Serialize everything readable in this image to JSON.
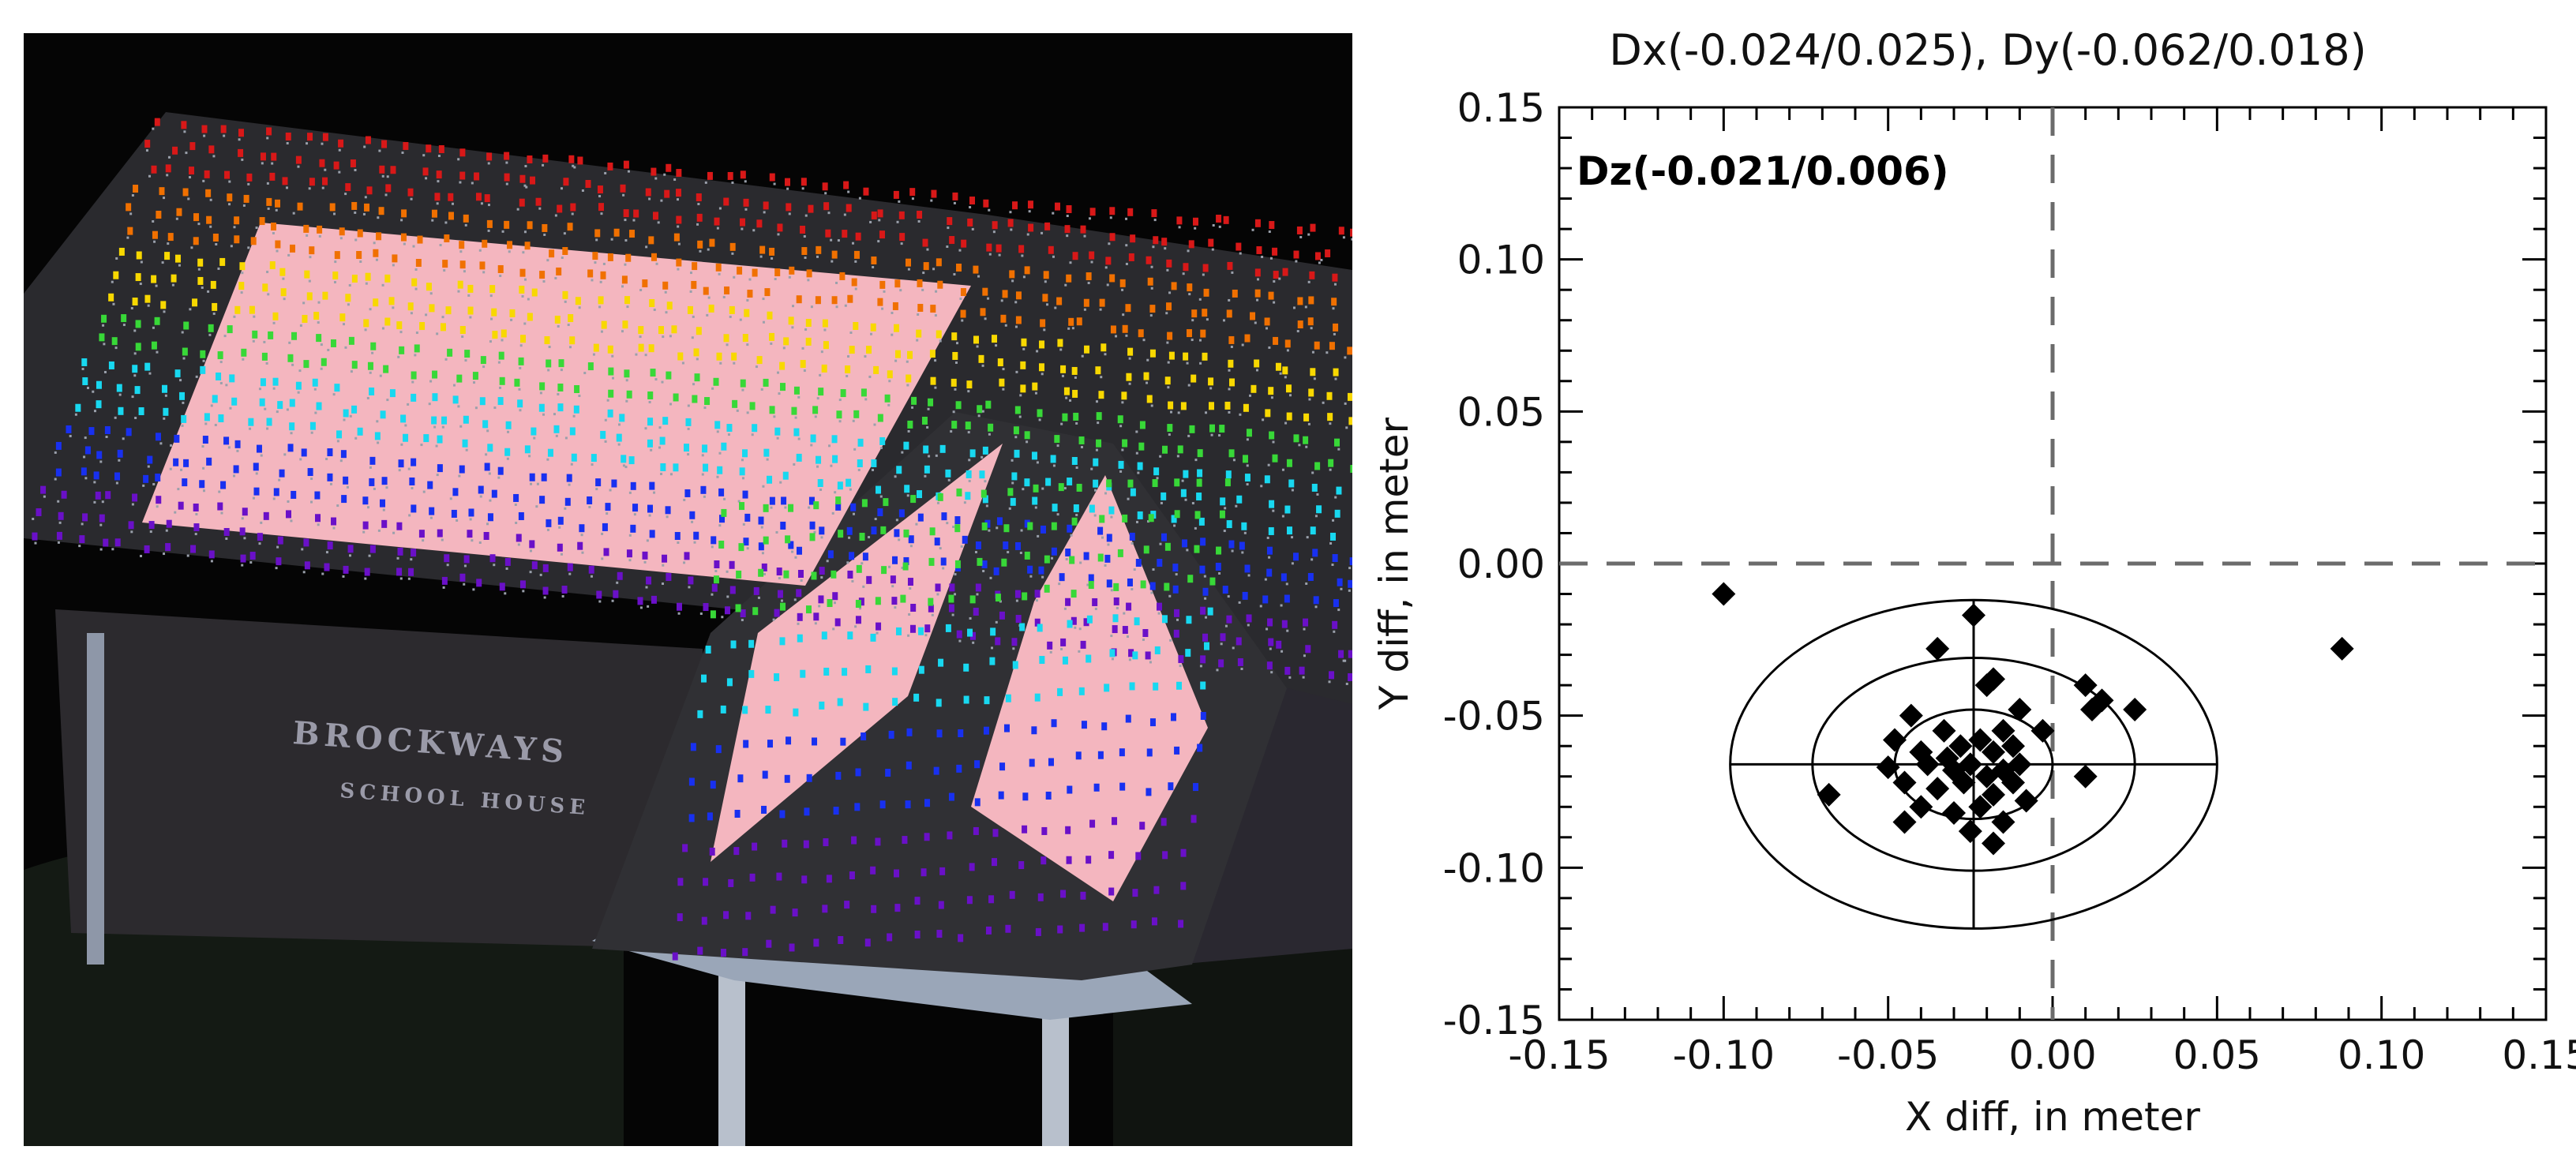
{
  "colors": {
    "background": "#ffffff",
    "scene_background": "#050505",
    "roof_plane": "#f4b6bf",
    "marker": "#000000",
    "reference_line": "#6b6b6b",
    "elevation_ramp": [
      "#d81818",
      "#f07000",
      "#f8d800",
      "#38d838",
      "#18d8f0",
      "#1830f0",
      "#6a10c8"
    ]
  },
  "scene": {
    "description_icon": "point-cloud-icon",
    "sign_line_1": "BROCKWAYS",
    "sign_line_2": "SCHOOL HOUSE"
  },
  "chart_data": {
    "type": "scatter",
    "title": "Dx(-0.024/0.025), Dy(-0.062/0.018)",
    "annotation": "Dz(-0.021/0.006)",
    "xlabel": "X diff, in meter",
    "ylabel": "Y diff, in meter",
    "xlim": [
      -0.15,
      0.15
    ],
    "ylim": [
      -0.15,
      0.15
    ],
    "x_ticks": [
      "-0.15",
      "-0.10",
      "-0.05",
      "0.00",
      "0.05",
      "0.10",
      "0.15"
    ],
    "y_ticks": [
      "0.15",
      "0.10",
      "0.05",
      "0.00",
      "-0.05",
      "-0.10",
      "-0.15"
    ],
    "x_tick_values": [
      -0.15,
      -0.1,
      -0.05,
      0.0,
      0.05,
      0.1,
      0.15
    ],
    "y_tick_values": [
      0.15,
      0.1,
      0.05,
      0.0,
      -0.05,
      -0.1,
      -0.15
    ],
    "grid": false,
    "reference_lines": {
      "x": 0.0,
      "y": 0.0,
      "style": "dashed"
    },
    "ellipse_center": [
      -0.024,
      -0.066
    ],
    "ellipses": [
      {
        "rx": 0.074,
        "ry": 0.054
      },
      {
        "rx": 0.049,
        "ry": 0.035
      },
      {
        "rx": 0.024,
        "ry": 0.018
      }
    ],
    "crosshair": {
      "x_range": [
        -0.098,
        0.05
      ],
      "y_range": [
        -0.12,
        -0.012
      ]
    },
    "points": [
      [
        -0.1,
        -0.01
      ],
      [
        0.088,
        -0.028
      ],
      [
        -0.024,
        -0.017
      ],
      [
        -0.035,
        -0.028
      ],
      [
        -0.02,
        -0.04
      ],
      [
        -0.018,
        -0.038
      ],
      [
        -0.01,
        -0.048
      ],
      [
        0.01,
        -0.04
      ],
      [
        0.015,
        -0.045
      ],
      [
        0.025,
        -0.048
      ],
      [
        0.012,
        -0.048
      ],
      [
        -0.003,
        -0.055
      ],
      [
        0.01,
        -0.07
      ],
      [
        -0.068,
        -0.076
      ],
      [
        -0.043,
        -0.05
      ],
      [
        -0.033,
        -0.055
      ],
      [
        -0.048,
        -0.058
      ],
      [
        -0.04,
        -0.062
      ],
      [
        -0.028,
        -0.06
      ],
      [
        -0.022,
        -0.058
      ],
      [
        -0.018,
        -0.062
      ],
      [
        -0.015,
        -0.055
      ],
      [
        -0.012,
        -0.06
      ],
      [
        -0.038,
        -0.066
      ],
      [
        -0.03,
        -0.068
      ],
      [
        -0.025,
        -0.066
      ],
      [
        -0.02,
        -0.07
      ],
      [
        -0.015,
        -0.068
      ],
      [
        -0.045,
        -0.072
      ],
      [
        -0.035,
        -0.074
      ],
      [
        -0.027,
        -0.072
      ],
      [
        -0.018,
        -0.076
      ],
      [
        -0.012,
        -0.072
      ],
      [
        -0.04,
        -0.08
      ],
      [
        -0.03,
        -0.082
      ],
      [
        -0.022,
        -0.08
      ],
      [
        -0.015,
        -0.085
      ],
      [
        -0.045,
        -0.085
      ],
      [
        -0.025,
        -0.088
      ],
      [
        -0.018,
        -0.092
      ],
      [
        -0.032,
        -0.064
      ],
      [
        -0.01,
        -0.066
      ],
      [
        -0.05,
        -0.067
      ],
      [
        -0.008,
        -0.078
      ]
    ]
  }
}
